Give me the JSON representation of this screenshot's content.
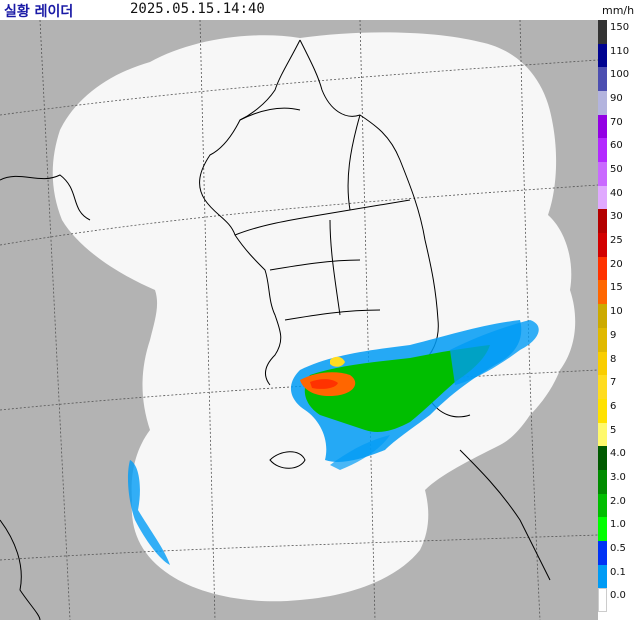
{
  "header": {
    "title": "실황 레이더",
    "timestamp": "2025.05.15.14:40",
    "unit": "mm/h"
  },
  "map": {
    "coverage_color": "#f7f7f7",
    "outside_color": "#b3b3b3",
    "coastline_color": "#000000",
    "gridline_color": "#555555"
  },
  "legend": {
    "items": [
      {
        "label": "150",
        "color": "#333333"
      },
      {
        "label": "110",
        "color": "#000390"
      },
      {
        "label": "100",
        "color": "#4c4eb1"
      },
      {
        "label": "90",
        "color": "#b3b4de"
      },
      {
        "label": "70",
        "color": "#9300e4"
      },
      {
        "label": "60",
        "color": "#b329ff"
      },
      {
        "label": "50",
        "color": "#c969ff"
      },
      {
        "label": "40",
        "color": "#e0a9ff"
      },
      {
        "label": "30",
        "color": "#b40000"
      },
      {
        "label": "25",
        "color": "#d20000"
      },
      {
        "label": "20",
        "color": "#ff3200"
      },
      {
        "label": "15",
        "color": "#ff6600"
      },
      {
        "label": "10",
        "color": "#ccaa00"
      },
      {
        "label": "9",
        "color": "#e0b900"
      },
      {
        "label": "8",
        "color": "#f9cd00"
      },
      {
        "label": "7",
        "color": "#ffdc1f"
      },
      {
        "label": "6",
        "color": "#ffe100"
      },
      {
        "label": "5",
        "color": "#fff96c"
      },
      {
        "label": "4.0",
        "color": "#005a00"
      },
      {
        "label": "3.0",
        "color": "#008c00"
      },
      {
        "label": "2.0",
        "color": "#00be00"
      },
      {
        "label": "1.0",
        "color": "#00ff00"
      },
      {
        "label": "0.5",
        "color": "#0033f5"
      },
      {
        "label": "0.1",
        "color": "#009bf5"
      },
      {
        "label": "0.0",
        "color": "#ffffff"
      }
    ]
  }
}
